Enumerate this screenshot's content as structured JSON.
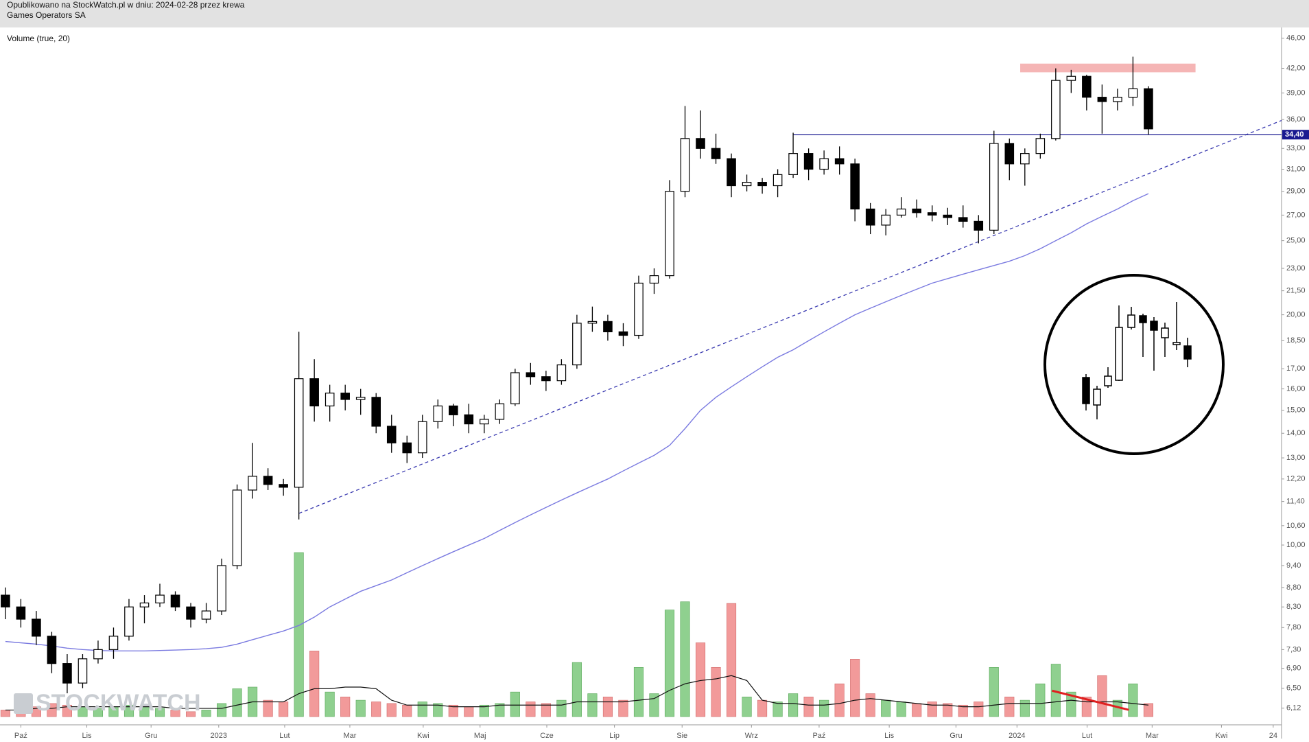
{
  "header": {
    "published": "Opublikowano na StockWatch.pl w dniu: 2024-02-28 przez krewa",
    "company": "Games Operators SA"
  },
  "chart_data": {
    "type": "candlestick",
    "indicator_label": "Volume (true, 20)",
    "watermark": "STOCKWATCH",
    "log_scale": true,
    "ylim": [
      5.82,
      47.5
    ],
    "yticks": [
      {
        "value": 6.12,
        "label": "6,12"
      },
      {
        "value": 6.5,
        "label": "6,50"
      },
      {
        "value": 6.9,
        "label": "6,90"
      },
      {
        "value": 7.3,
        "label": "7,30"
      },
      {
        "value": 7.8,
        "label": "7,80"
      },
      {
        "value": 8.3,
        "label": "8,30"
      },
      {
        "value": 8.8,
        "label": "8,80"
      },
      {
        "value": 9.4,
        "label": "9,40"
      },
      {
        "value": 10,
        "label": "10,00"
      },
      {
        "value": 10.6,
        "label": "10,60"
      },
      {
        "value": 11.4,
        "label": "11,40"
      },
      {
        "value": 12.2,
        "label": "12,20"
      },
      {
        "value": 13,
        "label": "13,00"
      },
      {
        "value": 14,
        "label": "14,00"
      },
      {
        "value": 15,
        "label": "15,00"
      },
      {
        "value": 16,
        "label": "16,00"
      },
      {
        "value": 17,
        "label": "17,00"
      },
      {
        "value": 18.5,
        "label": "18,50"
      },
      {
        "value": 20,
        "label": "20,00"
      },
      {
        "value": 21.5,
        "label": "21,50"
      },
      {
        "value": 23,
        "label": "23,00"
      },
      {
        "value": 25,
        "label": "25,00"
      },
      {
        "value": 27,
        "label": "27,00"
      },
      {
        "value": 29,
        "label": "29,00"
      },
      {
        "value": 31,
        "label": "31,00"
      },
      {
        "value": 33,
        "label": "33,00"
      },
      {
        "value": 36,
        "label": "36,00"
      },
      {
        "value": 39,
        "label": "39,00"
      },
      {
        "value": 42,
        "label": "42,00"
      },
      {
        "value": 46,
        "label": "46,00"
      }
    ],
    "xlim": [
      -1.35,
      81.62
    ],
    "xticks": [
      {
        "value": 0,
        "label": "Paź"
      },
      {
        "value": 4.27,
        "label": "Lis"
      },
      {
        "value": 8.43,
        "label": "Gru"
      },
      {
        "value": 12.81,
        "label": "2023"
      },
      {
        "value": 17.08,
        "label": "Lut"
      },
      {
        "value": 21.3,
        "label": "Mar"
      },
      {
        "value": 26.05,
        "label": "Kwi"
      },
      {
        "value": 29.73,
        "label": "Maj"
      },
      {
        "value": 34.05,
        "label": "Cze"
      },
      {
        "value": 38.43,
        "label": "Lip"
      },
      {
        "value": 42.81,
        "label": "Sie"
      },
      {
        "value": 47.3,
        "label": "Wrz"
      },
      {
        "value": 51.68,
        "label": "Paź"
      },
      {
        "value": 56.22,
        "label": "Lis"
      },
      {
        "value": 60.54,
        "label": "Gru"
      },
      {
        "value": 64.49,
        "label": "2024"
      },
      {
        "value": 69.03,
        "label": "Lut"
      },
      {
        "value": 73.24,
        "label": "Mar"
      },
      {
        "value": 77.73,
        "label": "Kwi"
      },
      {
        "value": 81.08,
        "label": "24"
      }
    ],
    "x": [
      -1,
      0,
      1,
      2,
      3,
      4,
      5,
      6,
      7,
      8,
      9,
      10,
      11,
      12,
      13,
      14,
      15,
      16,
      17,
      18,
      19,
      20,
      21,
      22,
      23,
      24,
      25,
      26,
      27,
      28,
      29,
      30,
      31,
      32,
      33,
      34,
      35,
      36,
      37,
      38,
      39,
      40,
      41,
      42,
      43,
      44,
      45,
      46,
      47,
      48,
      49,
      50,
      51,
      52,
      53,
      54,
      55,
      56,
      57,
      58,
      59,
      60,
      61,
      62,
      63,
      64,
      65,
      66,
      67,
      68,
      69,
      70,
      71,
      72,
      73
    ],
    "open": [
      8.6,
      8.3,
      8.0,
      7.6,
      7.0,
      6.6,
      7.1,
      7.3,
      7.6,
      8.3,
      8.4,
      8.6,
      8.3,
      8.0,
      8.2,
      9.4,
      11.8,
      12.3,
      12.0,
      11.9,
      16.5,
      15.2,
      15.8,
      15.5,
      15.6,
      14.3,
      13.6,
      13.2,
      14.5,
      15.2,
      14.8,
      14.4,
      14.6,
      15.3,
      16.8,
      16.6,
      16.4,
      17.2,
      19.5,
      19.6,
      19.0,
      18.8,
      22.0,
      22.5,
      29.0,
      34.0,
      33.0,
      32.0,
      29.5,
      29.8,
      29.5,
      30.5,
      32.5,
      31.0,
      32.0,
      31.5,
      27.5,
      26.2,
      27.0,
      27.5,
      27.2,
      27.0,
      26.8,
      26.5,
      25.8,
      33.5,
      31.5,
      32.5,
      34.0,
      40.5,
      41.0,
      38.5,
      38.0,
      38.5,
      39.5
    ],
    "high": [
      8.8,
      8.5,
      8.2,
      7.7,
      7.2,
      7.2,
      7.5,
      7.8,
      8.5,
      8.6,
      8.9,
      8.7,
      8.4,
      8.4,
      9.6,
      12.0,
      13.6,
      12.6,
      12.2,
      19.0,
      17.5,
      16.2,
      16.2,
      16.0,
      15.8,
      14.8,
      13.9,
      14.8,
      15.5,
      15.3,
      15.3,
      14.8,
      15.5,
      17.0,
      17.3,
      16.9,
      17.5,
      20.0,
      20.5,
      20.0,
      19.5,
      22.5,
      23.0,
      30.0,
      37.5,
      37.0,
      34.5,
      32.5,
      30.5,
      30.2,
      31.0,
      34.6,
      33.0,
      32.8,
      33.2,
      32.0,
      28.0,
      27.5,
      28.5,
      28.3,
      27.8,
      27.6,
      27.8,
      27.0,
      34.8,
      34.0,
      33.0,
      34.5,
      42.0,
      41.8,
      41.2,
      40.0,
      39.5,
      43.5,
      39.8
    ],
    "low": [
      8.0,
      7.8,
      7.4,
      6.8,
      6.4,
      6.5,
      7.0,
      7.1,
      7.5,
      7.9,
      8.3,
      8.2,
      7.8,
      7.9,
      8.1,
      9.3,
      11.5,
      11.8,
      11.6,
      10.8,
      14.5,
      14.5,
      15.0,
      14.8,
      14.0,
      13.2,
      12.8,
      13.0,
      14.2,
      14.3,
      14.0,
      14.0,
      14.4,
      15.2,
      16.2,
      15.9,
      16.2,
      17.0,
      19.0,
      18.5,
      18.2,
      18.6,
      21.3,
      22.3,
      28.5,
      32.0,
      31.5,
      28.5,
      29.0,
      28.8,
      28.5,
      30.2,
      30.0,
      30.5,
      30.5,
      26.5,
      25.5,
      25.4,
      26.8,
      26.8,
      26.5,
      26.2,
      26.0,
      24.8,
      25.5,
      30.0,
      29.5,
      32.0,
      33.8,
      39.0,
      37.0,
      34.5,
      37.0,
      37.5,
      34.4
    ],
    "close": [
      8.3,
      8.0,
      7.6,
      7.0,
      6.6,
      7.1,
      7.3,
      7.6,
      8.3,
      8.4,
      8.6,
      8.3,
      8.0,
      8.2,
      9.4,
      11.8,
      12.3,
      12.0,
      11.9,
      16.5,
      15.2,
      15.8,
      15.5,
      15.6,
      14.3,
      13.6,
      13.2,
      14.5,
      15.2,
      14.8,
      14.4,
      14.6,
      15.3,
      16.8,
      16.6,
      16.4,
      17.2,
      19.5,
      19.6,
      19.0,
      18.8,
      22.0,
      22.5,
      29.0,
      34.0,
      33.0,
      32.0,
      29.5,
      29.8,
      29.5,
      30.5,
      32.5,
      31.0,
      32.0,
      31.5,
      27.5,
      26.2,
      27.0,
      27.5,
      27.2,
      27.0,
      26.8,
      26.5,
      25.8,
      33.5,
      31.5,
      32.5,
      34.0,
      40.5,
      41.0,
      38.5,
      38.0,
      38.5,
      39.5,
      35.0
    ],
    "moving_average": {
      "color": "#7a7ae0",
      "values": [
        7.48,
        7.45,
        7.42,
        7.38,
        7.33,
        7.3,
        7.28,
        7.27,
        7.27,
        7.27,
        7.28,
        7.29,
        7.3,
        7.32,
        7.35,
        7.42,
        7.52,
        7.62,
        7.72,
        7.85,
        8.05,
        8.3,
        8.5,
        8.7,
        8.85,
        9.0,
        9.2,
        9.4,
        9.6,
        9.8,
        10.0,
        10.2,
        10.45,
        10.7,
        10.95,
        11.2,
        11.45,
        11.7,
        11.95,
        12.2,
        12.5,
        12.8,
        13.1,
        13.5,
        14.2,
        15.0,
        15.6,
        16.1,
        16.6,
        17.1,
        17.6,
        18.0,
        18.5,
        19.0,
        19.5,
        20.0,
        20.4,
        20.8,
        21.2,
        21.6,
        22.0,
        22.3,
        22.6,
        22.9,
        23.2,
        23.5,
        23.9,
        24.4,
        25.0,
        25.6,
        26.3,
        26.9,
        27.5,
        28.2,
        28.8
      ]
    },
    "volume_ylim": [
      0,
      100
    ],
    "volume": [
      4,
      5,
      6,
      8,
      7,
      6,
      5,
      6,
      7,
      6,
      5,
      4,
      3,
      4,
      8,
      17,
      18,
      10,
      9,
      100,
      40,
      15,
      12,
      10,
      9,
      8,
      7,
      9,
      8,
      7,
      6,
      7,
      8,
      15,
      9,
      8,
      10,
      33,
      14,
      12,
      10,
      30,
      14,
      65,
      70,
      45,
      30,
      69,
      12,
      10,
      9,
      14,
      12,
      10,
      20,
      35,
      14,
      10,
      9,
      8,
      9,
      8,
      7,
      9,
      30,
      12,
      10,
      20,
      32,
      15,
      12,
      25,
      10,
      20,
      8
    ],
    "volume_ma": [
      4,
      4,
      5,
      5,
      6,
      6,
      6,
      6,
      6,
      6,
      6,
      5,
      5,
      5,
      5,
      7,
      9,
      9,
      9,
      14,
      17,
      17,
      18,
      18,
      17,
      10,
      7,
      7,
      7,
      6,
      6,
      6,
      7,
      7,
      7,
      7,
      7,
      9,
      9,
      9,
      9,
      10,
      11,
      16,
      20,
      22,
      23,
      25,
      22,
      10,
      8,
      8,
      7,
      7,
      8,
      10,
      11,
      10,
      9,
      8,
      7,
      7,
      6,
      6,
      7,
      8,
      8,
      8,
      9,
      10,
      9,
      9,
      9,
      8,
      7
    ],
    "up_volume_color": "#8fd08f",
    "down_volume_color": "#f29a9a",
    "price_line": {
      "value": 34.4,
      "label": "34,40",
      "x_start": 50,
      "color": "#1a1a90"
    },
    "trend_line": {
      "x": [
        18.0,
        81.62
      ],
      "y": [
        11.0,
        35.9
      ],
      "color": "#3a3ab0"
    },
    "resistance_zone": {
      "x": [
        64.7,
        76.05
      ],
      "y": [
        41.5,
        42.6
      ],
      "color": "#f5b5b5"
    },
    "volume_trend": {
      "x": [
        66.76,
        71.73
      ],
      "y": [
        15.8,
        4.1
      ],
      "color": "#e02020"
    }
  }
}
